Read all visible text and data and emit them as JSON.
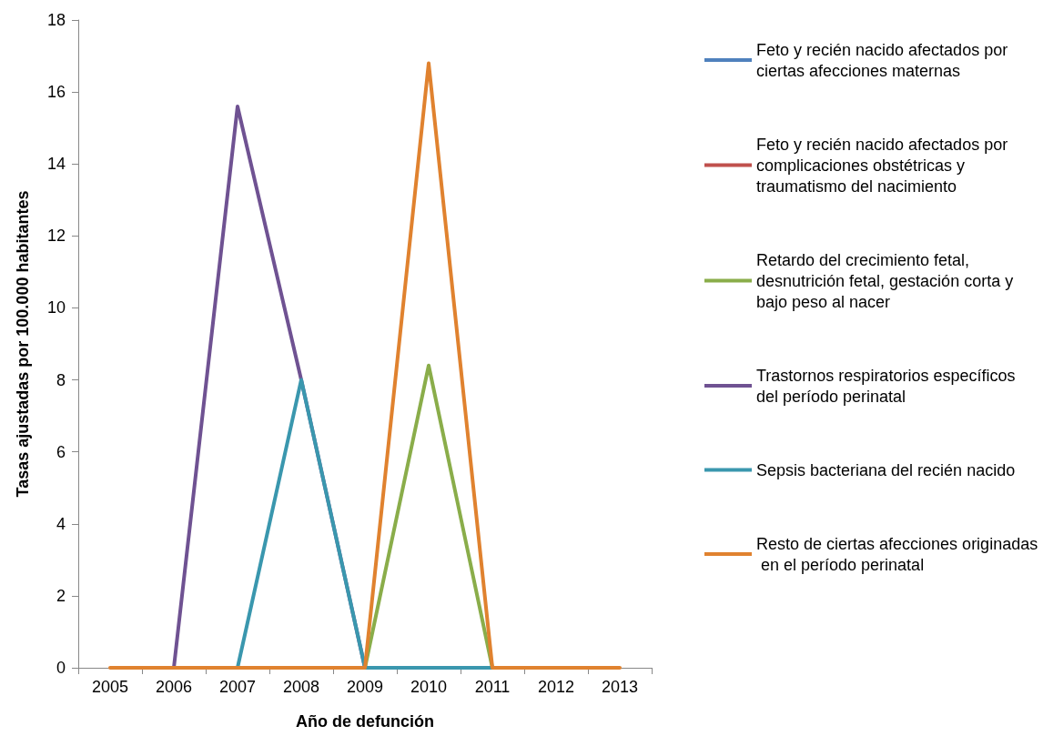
{
  "chart_data": {
    "type": "line",
    "xlabel": "Año de defunción",
    "ylabel": "Tasas ajustadas por 100.000 habitantes",
    "categories": [
      "2005",
      "2006",
      "2007",
      "2008",
      "2009",
      "2010",
      "2011",
      "2012",
      "2013"
    ],
    "series": [
      {
        "name": "Feto y recién nacido afectados por ciertas afecciones maternas",
        "color": "#4f81bd",
        "values": [
          null,
          null,
          null,
          null,
          null,
          null,
          null,
          null,
          null
        ]
      },
      {
        "name": "Feto y recién nacido afectados por complicaciones obstétricas y traumatismo del nacimiento",
        "color": "#c0504d",
        "values": [
          null,
          null,
          null,
          null,
          null,
          null,
          null,
          null,
          null
        ]
      },
      {
        "name": "Retardo del crecimiento fetal, desnutrición fetal, gestación corta y bajo peso al nacer",
        "color": "#8aad4a",
        "values": [
          null,
          null,
          null,
          null,
          0,
          8.4,
          0,
          null,
          null
        ]
      },
      {
        "name": "Trastornos respiratorios específicos del período perinatal",
        "color": "#6f5292",
        "values": [
          null,
          0,
          15.6,
          8.0,
          0,
          null,
          null,
          null,
          null
        ]
      },
      {
        "name": "Sepsis bacteriana del recién nacido",
        "color": "#3a97ae",
        "values": [
          null,
          null,
          0,
          8.0,
          0,
          0,
          0,
          null,
          null
        ]
      },
      {
        "name": "Resto de ciertas afecciones originadas en el período perinatal",
        "color": "#e0822f",
        "values": [
          0,
          0,
          0,
          0,
          0,
          16.8,
          0,
          0,
          0
        ]
      }
    ],
    "ylim": [
      0,
      18
    ],
    "yticks": [
      0,
      2,
      4,
      6,
      8,
      10,
      12,
      14,
      16,
      18
    ],
    "grid": false,
    "legend": "right",
    "marker": "none",
    "line_style": "solid"
  }
}
